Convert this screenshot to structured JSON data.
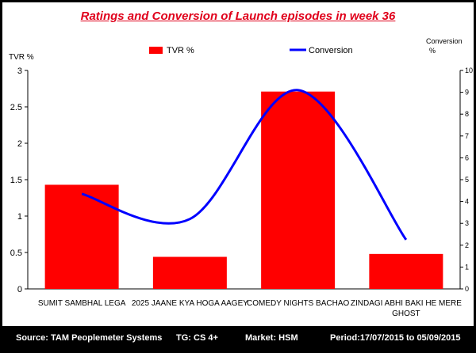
{
  "chart_data": {
    "type": "bar+line",
    "title": "Ratings and Conversion of Launch episodes in week 36",
    "categories": [
      "SUMIT SAMBHAL LEGA",
      "2025 JAANE KYA HOGA AAGEY",
      "COMEDY NIGHTS BACHAO",
      "ZINDAGI ABHI BAKI HE MERE GHOST"
    ],
    "category_lines": [
      [
        "SUMIT SAMBHAL LEGA"
      ],
      [
        "2025 JAANE KYA HOGA AAGEY"
      ],
      [
        "COMEDY NIGHTS BACHAO"
      ],
      [
        "ZINDAGI ABHI BAKI HE MERE",
        "GHOST"
      ]
    ],
    "series": [
      {
        "name": "TVR %",
        "type": "bar",
        "axis": "left",
        "color": "#ff0000",
        "values": [
          1.43,
          0.44,
          2.71,
          0.48
        ]
      },
      {
        "name": "Conversion",
        "type": "line",
        "axis": "right",
        "color": "#0000ff",
        "values": [
          4.35,
          3.2,
          9.1,
          2.25
        ]
      }
    ],
    "y_left": {
      "label": "TVR %",
      "min": 0,
      "max": 3,
      "ticks": [
        "0",
        "0.5",
        "1",
        "1.5",
        "2",
        "2.5",
        "3"
      ]
    },
    "y_right": {
      "label_lines": [
        "Conversion",
        "%"
      ],
      "min": 0,
      "max": 10,
      "ticks": [
        "0",
        "1",
        "2",
        "3",
        "4",
        "5",
        "6",
        "7",
        "8",
        "9",
        "10"
      ]
    },
    "grid": false,
    "legend_position": "top"
  },
  "footer": {
    "source": "Source: TAM Peoplemeter Systems",
    "tg": "TG: CS 4+",
    "market": "Market: HSM",
    "period": "Period:17/07/2015 to  05/09/2015"
  }
}
